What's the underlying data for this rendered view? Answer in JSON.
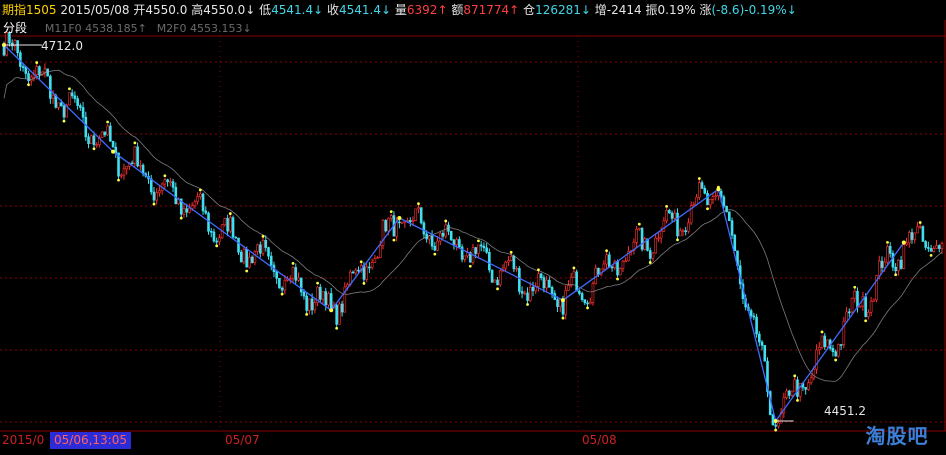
{
  "header": {
    "symbol": "期指1505",
    "date": "2015/05/08",
    "open_label": "开",
    "open_value": "4550.0",
    "high_label": "高",
    "high_value": "4550.0↓",
    "low_label": "低",
    "low_value": "4541.4↓",
    "close_label": "收",
    "close_value": "4541.4↓",
    "vol_label": "量",
    "vol_value": "6392↑",
    "amount_label": "额",
    "amount_value": "871774↑",
    "oi_label": "仓",
    "oi_value": "126281↓",
    "oi_change_label": "增",
    "oi_change_value": "-2414",
    "amplitude_label": "振",
    "amplitude_value": "0.19%",
    "change_label": "涨",
    "change_value": "(-8.6)-0.19%↓"
  },
  "subheader": {
    "mode": "分段",
    "ma1": "M11F0 4538.185↑",
    "ma2": "M2F0 4553.153↓"
  },
  "chart_data": {
    "type": "candlestick",
    "high_marker": "4712.0",
    "low_marker": "4451.2",
    "ylim": [
      4440,
      4740
    ],
    "segment_pivots": [
      {
        "i": 0,
        "p": 4712.0
      },
      {
        "i": 40,
        "p": 4638.0
      },
      {
        "i": 120,
        "p": 4528.0
      },
      {
        "i": 145,
        "p": 4592.0
      },
      {
        "i": 205,
        "p": 4535.0
      },
      {
        "i": 262,
        "p": 4612.0
      },
      {
        "i": 283,
        "p": 4451.2
      },
      {
        "i": 330,
        "p": 4575.0
      }
    ],
    "x_labels": [
      "2015/0",
      "05/07",
      "05/08"
    ],
    "cursor_label": "05/06,13:05",
    "colors": {
      "up": "#ff3030",
      "down": "#40e0f0",
      "segment": "#3e6bff",
      "ma_slow": "#b0b0b0",
      "grid": "#8a0000",
      "pivot": "#ffff40"
    }
  },
  "axis": {
    "start": "2015/0",
    "cursor": "05/06,13:05",
    "d1": "05/07",
    "d2": "05/08"
  },
  "watermark": "淘股吧"
}
